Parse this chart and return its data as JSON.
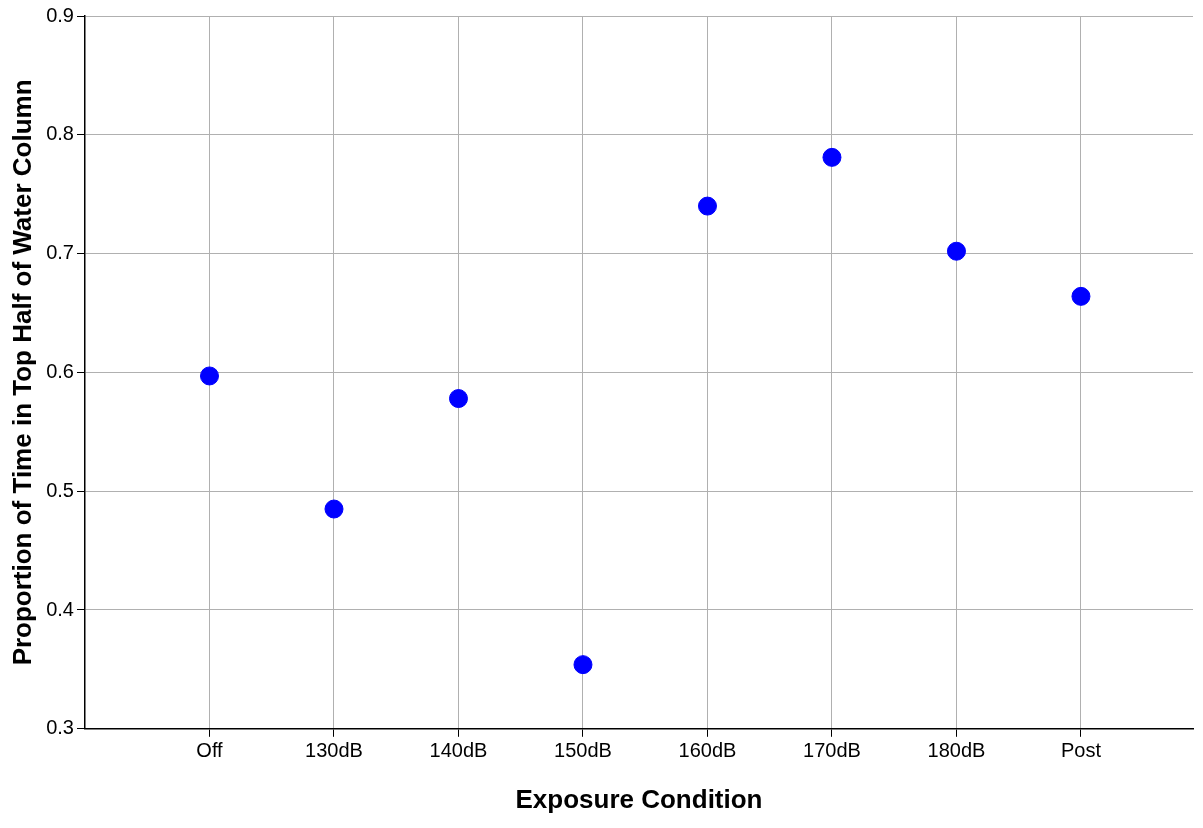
{
  "chart_data": {
    "type": "scatter",
    "xlabel": "Exposure Condition",
    "ylabel": "Proportion of Time in Top Half of Water Column",
    "categories": [
      "Off",
      "130dB",
      "140dB",
      "150dB",
      "160dB",
      "170dB",
      "180dB",
      "Post"
    ],
    "values": [
      0.597,
      0.485,
      0.578,
      0.354,
      0.74,
      0.781,
      0.702,
      0.664
    ],
    "color": "#0000ff",
    "marker": "circle",
    "grid": true,
    "legend": false,
    "ylim": [
      0.3,
      0.9
    ],
    "yticks": [
      0.3,
      0.4,
      0.5,
      0.6,
      0.7,
      0.8,
      0.9
    ]
  }
}
